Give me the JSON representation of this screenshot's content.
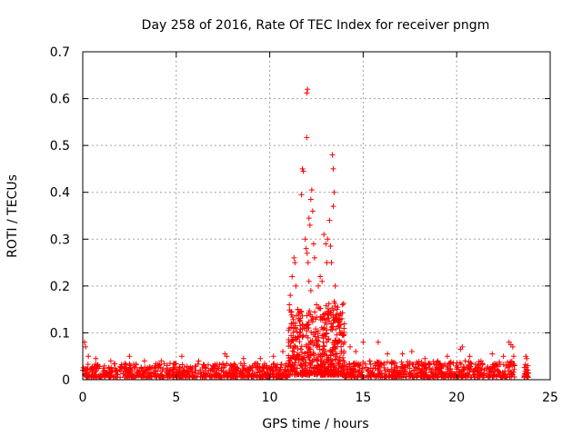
{
  "chart_data": {
    "type": "scatter",
    "title": "Day 258 of 2016, Rate Of TEC Index for receiver pngm",
    "xlabel": "GPS time / hours",
    "ylabel": "ROTI / TECUs",
    "xlim": [
      0,
      25
    ],
    "ylim": [
      0,
      0.7
    ],
    "x_ticks": [
      0,
      5,
      10,
      15,
      20,
      25
    ],
    "x_tick_labels": [
      "0",
      "5",
      "10",
      "15",
      "20",
      "25"
    ],
    "y_ticks": [
      0,
      0.1,
      0.2,
      0.3,
      0.4,
      0.5,
      0.6,
      0.7
    ],
    "y_tick_labels": [
      "0",
      "0.1",
      "0.2",
      "0.3",
      "0.4",
      "0.5",
      "0.6",
      "0.7"
    ],
    "grid": true,
    "marker": "+",
    "color": "#ff0000",
    "series": [
      {
        "name": "ROTI",
        "points": [
          [
            0.1,
            0.08
          ],
          [
            0.15,
            0.07
          ],
          [
            0.3,
            0.05
          ],
          [
            0.7,
            0.045
          ],
          [
            1.5,
            0.04
          ],
          [
            2.5,
            0.05
          ],
          [
            3.3,
            0.04
          ],
          [
            4.2,
            0.04
          ],
          [
            5.3,
            0.05
          ],
          [
            6.2,
            0.04
          ],
          [
            7.6,
            0.055
          ],
          [
            7.7,
            0.05
          ],
          [
            8.6,
            0.045
          ],
          [
            9.5,
            0.045
          ],
          [
            10.2,
            0.05
          ],
          [
            10.7,
            0.06
          ],
          [
            11.05,
            0.16
          ],
          [
            11.1,
            0.18
          ],
          [
            11.2,
            0.22
          ],
          [
            11.3,
            0.26
          ],
          [
            11.35,
            0.25
          ],
          [
            11.4,
            0.2
          ],
          [
            11.5,
            0.15
          ],
          [
            11.55,
            0.13
          ],
          [
            11.6,
            0.1
          ],
          [
            11.7,
            0.395
          ],
          [
            11.75,
            0.45
          ],
          [
            11.8,
            0.445
          ],
          [
            11.9,
            0.3
          ],
          [
            11.95,
            0.28
          ],
          [
            11.98,
            0.612
          ],
          [
            12.02,
            0.62
          ],
          [
            11.98,
            0.517
          ],
          [
            12.0,
            0.27
          ],
          [
            12.05,
            0.25
          ],
          [
            12.1,
            0.345
          ],
          [
            12.15,
            0.33
          ],
          [
            12.2,
            0.385
          ],
          [
            12.25,
            0.405
          ],
          [
            12.3,
            0.36
          ],
          [
            12.35,
            0.29
          ],
          [
            12.4,
            0.26
          ],
          [
            12.2,
            0.19
          ],
          [
            12.1,
            0.21
          ],
          [
            12.5,
            0.16
          ],
          [
            12.6,
            0.2
          ],
          [
            12.7,
            0.22
          ],
          [
            12.8,
            0.21
          ],
          [
            12.9,
            0.31
          ],
          [
            13.0,
            0.29
          ],
          [
            13.05,
            0.25
          ],
          [
            13.1,
            0.3
          ],
          [
            13.2,
            0.34
          ],
          [
            13.25,
            0.285
          ],
          [
            13.3,
            0.25
          ],
          [
            13.35,
            0.48
          ],
          [
            13.4,
            0.45
          ],
          [
            13.45,
            0.4
          ],
          [
            13.4,
            0.37
          ],
          [
            13.5,
            0.2
          ],
          [
            13.6,
            0.15
          ],
          [
            13.7,
            0.13
          ],
          [
            13.8,
            0.1
          ],
          [
            14.0,
            0.08
          ],
          [
            14.3,
            0.07
          ],
          [
            14.6,
            0.06
          ],
          [
            15.0,
            0.08
          ],
          [
            15.8,
            0.08
          ],
          [
            16.3,
            0.055
          ],
          [
            17.1,
            0.055
          ],
          [
            17.6,
            0.06
          ],
          [
            18.3,
            0.045
          ],
          [
            19.0,
            0.04
          ],
          [
            19.5,
            0.05
          ],
          [
            20.2,
            0.065
          ],
          [
            20.3,
            0.07
          ],
          [
            20.7,
            0.05
          ],
          [
            21.3,
            0.04
          ],
          [
            21.9,
            0.055
          ],
          [
            22.5,
            0.05
          ],
          [
            22.8,
            0.08
          ],
          [
            22.9,
            0.075
          ],
          [
            23.0,
            0.07
          ],
          [
            23.05,
            0.05
          ],
          [
            23.1,
            0.03
          ],
          [
            23.7,
            0.05
          ],
          [
            23.75,
            0.045
          ],
          [
            23.8,
            0.015
          ]
        ]
      }
    ]
  }
}
